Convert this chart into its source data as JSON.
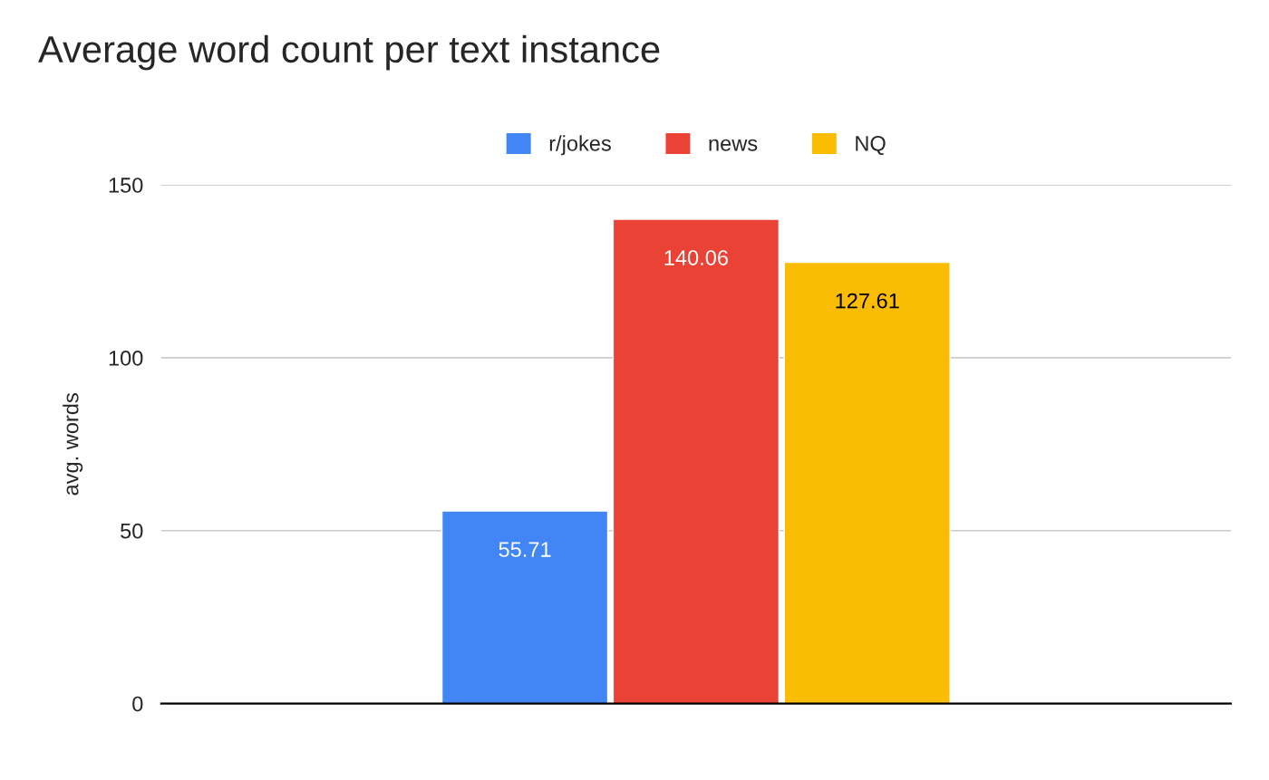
{
  "chart_data": {
    "type": "bar",
    "title": "Average word count per text instance",
    "ylabel": "avg. words",
    "categories": [
      null
    ],
    "series": [
      {
        "name": "r/jokes",
        "color": "#4285f4",
        "values": [
          55.71
        ]
      },
      {
        "name": "news",
        "color": "#ea4335",
        "values": [
          140.06
        ]
      },
      {
        "name": "NQ",
        "color": "#fbbc04",
        "values": [
          127.61
        ]
      }
    ],
    "ylim": [
      0,
      150
    ],
    "yticks": [
      0,
      50,
      100,
      150
    ],
    "grid": "y",
    "legend": "top",
    "data_labels": true
  }
}
